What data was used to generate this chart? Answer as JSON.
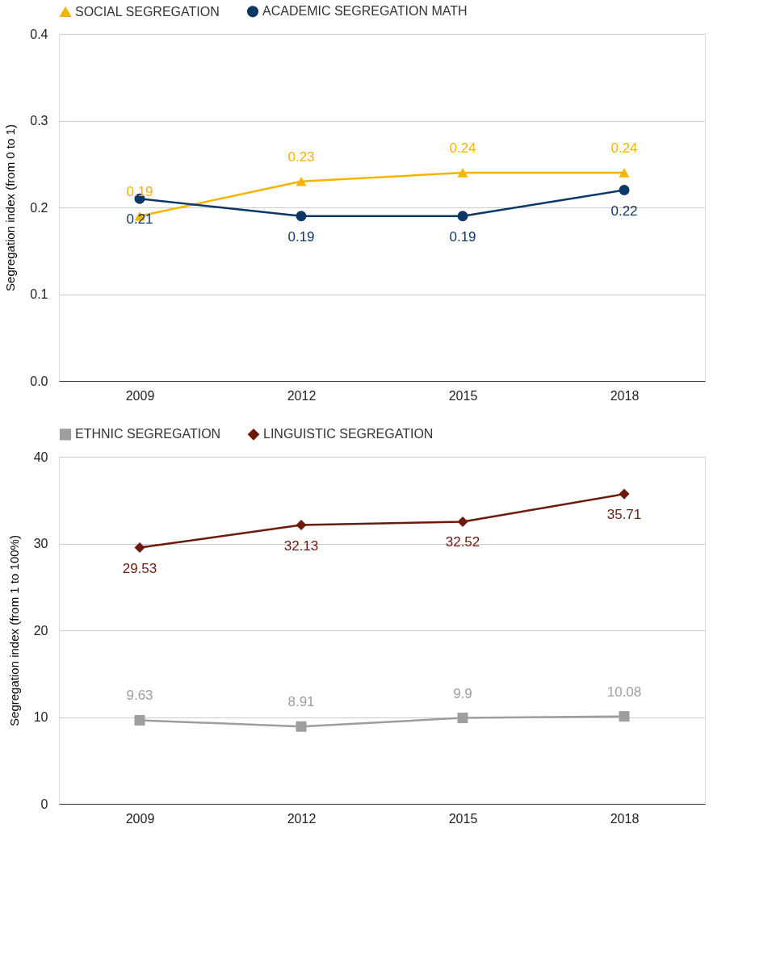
{
  "chart_data": [
    {
      "type": "line",
      "ylabel": "Segregation index  (from 0 to 1)",
      "categories": [
        "2009",
        "2012",
        "2015",
        "2018"
      ],
      "series": [
        {
          "name": "SOCIAL SEGREGATION",
          "color": "#f4b400",
          "marker": "triangle",
          "values": [
            0.19,
            0.23,
            0.24,
            0.24
          ]
        },
        {
          "name": "ACADEMIC SEGREGATION MATH",
          "color": "#0b3866",
          "marker": "circle",
          "values": [
            0.21,
            0.19,
            0.19,
            0.22
          ]
        }
      ],
      "ylim": [
        0,
        0.4
      ],
      "yticks": [
        {
          "value": 0,
          "label": "0.0"
        },
        0.1,
        0.2,
        0.3,
        0.4
      ],
      "grid": "y",
      "legend": "top",
      "data_labels": true,
      "line_style": "solid"
    },
    {
      "type": "line",
      "ylabel": "Segregation index (from 1 to 100%)",
      "categories": [
        "2009",
        "2012",
        "2015",
        "2018"
      ],
      "series": [
        {
          "name": "ETHNIC SEGREGATION",
          "color": "#9e9e9e",
          "marker": "square",
          "values": [
            9.63,
            8.91,
            9.9,
            10.08
          ]
        },
        {
          "name": "LINGUISTIC SEGREGATION",
          "color": "#6b1a0c",
          "marker": "diamond",
          "values": [
            29.53,
            32.13,
            32.52,
            35.71
          ]
        }
      ],
      "ylim": [
        0,
        40
      ],
      "yticks": [
        0,
        10,
        20,
        30,
        40
      ],
      "grid": "y",
      "legend": "top",
      "data_labels": true,
      "line_style": "solid"
    }
  ]
}
